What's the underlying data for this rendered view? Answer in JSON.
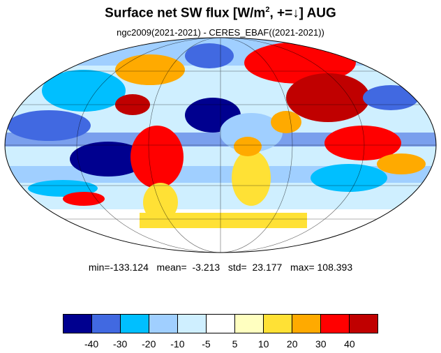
{
  "title": {
    "main": "Surface net SW flux [W/m",
    "sup": "2",
    "rest": ", +=↓]  AUG"
  },
  "subtitle": "ngc2009(2021-2021) - CERES_EBAF((2021-2021))",
  "stats": "min=-133.124   mean=  -3.213   std=  23.177   max= 108.393",
  "colorbar": {
    "colors": [
      "#00008f",
      "#4169e1",
      "#00bfff",
      "#a0cfff",
      "#cfefff",
      "#ffffff",
      "#ffffc0",
      "#ffe135",
      "#ffaa00",
      "#ff0000",
      "#c00000"
    ],
    "labels": [
      "-40",
      "-30",
      "-20",
      "-10",
      "-5",
      "5",
      "10",
      "20",
      "30",
      "40"
    ]
  },
  "map": {
    "projection": "mollweide",
    "graticule": true
  }
}
